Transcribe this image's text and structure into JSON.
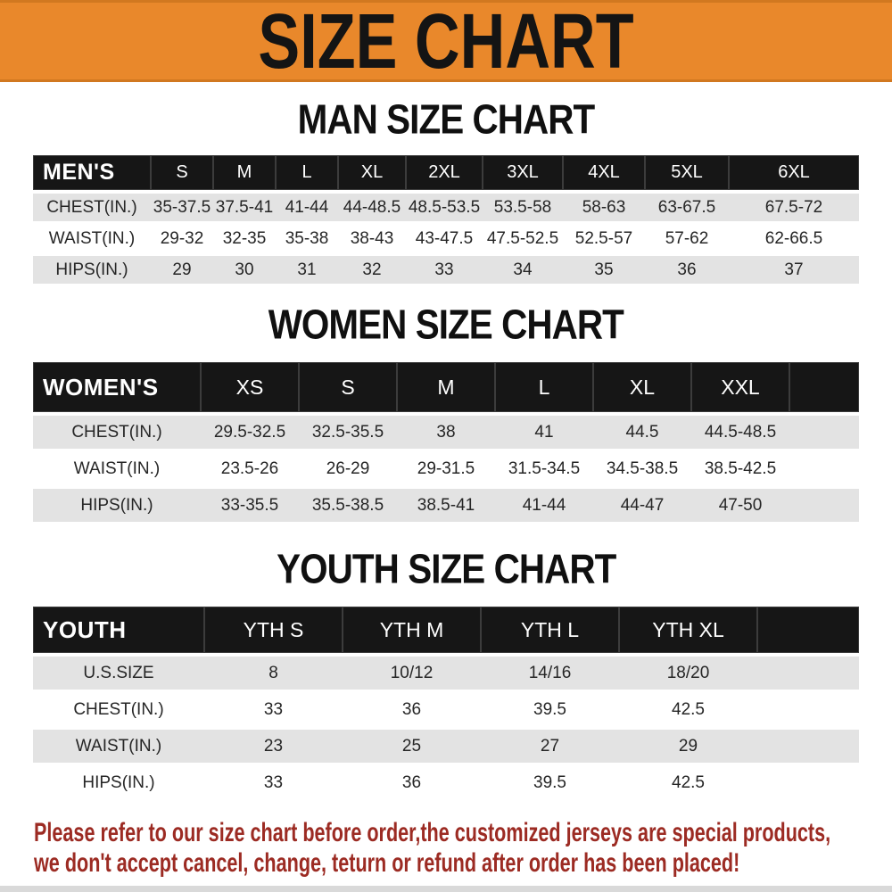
{
  "banner": {
    "title": "SIZE CHART",
    "bg_color": "#e9882b",
    "text_color": "#141414"
  },
  "colors": {
    "table_header_bg": "#161616",
    "table_header_text": "#ffffff",
    "row_stripe": "#e3e3e3",
    "disclaimer_text": "#9c2b23"
  },
  "sections": [
    {
      "id": "men",
      "title": "MAN SIZE CHART",
      "header_label": "MEN'S",
      "columns": [
        "S",
        "M",
        "L",
        "XL",
        "2XL",
        "3XL",
        "4XL",
        "5XL",
        "6XL"
      ],
      "rows": [
        {
          "label": "CHEST(IN.)",
          "values": [
            "35-37.5",
            "37.5-41",
            "41-44",
            "44-48.5",
            "48.5-53.5",
            "53.5-58",
            "58-63",
            "63-67.5",
            "67.5-72"
          ]
        },
        {
          "label": "WAIST(IN.)",
          "values": [
            "29-32",
            "32-35",
            "35-38",
            "38-43",
            "43-47.5",
            "47.5-52.5",
            "52.5-57",
            "57-62",
            "62-66.5"
          ]
        },
        {
          "label": "HIPS(IN.)",
          "values": [
            "29",
            "30",
            "31",
            "32",
            "33",
            "34",
            "35",
            "36",
            "37"
          ]
        }
      ]
    },
    {
      "id": "women",
      "title": "WOMEN SIZE CHART",
      "header_label": "WOMEN'S",
      "columns": [
        "XS",
        "S",
        "M",
        "L",
        "XL",
        "XXL"
      ],
      "rows": [
        {
          "label": "CHEST(IN.)",
          "values": [
            "29.5-32.5",
            "32.5-35.5",
            "38",
            "41",
            "44.5",
            "44.5-48.5"
          ]
        },
        {
          "label": "WAIST(IN.)",
          "values": [
            "23.5-26",
            "26-29",
            "29-31.5",
            "31.5-34.5",
            "34.5-38.5",
            "38.5-42.5"
          ]
        },
        {
          "label": "HIPS(IN.)",
          "values": [
            "33-35.5",
            "35.5-38.5",
            "38.5-41",
            "41-44",
            "44-47",
            "47-50"
          ]
        }
      ]
    },
    {
      "id": "youth",
      "title": "YOUTH SIZE CHART",
      "header_label": "YOUTH",
      "columns": [
        "YTH S",
        "YTH M",
        "YTH L",
        "YTH XL"
      ],
      "rows": [
        {
          "label": "U.S.SIZE",
          "values": [
            "8",
            "10/12",
            "14/16",
            "18/20"
          ]
        },
        {
          "label": "CHEST(IN.)",
          "values": [
            "33",
            "36",
            "39.5",
            "42.5"
          ]
        },
        {
          "label": "WAIST(IN.)",
          "values": [
            "23",
            "25",
            "27",
            "29"
          ]
        },
        {
          "label": "HIPS(IN.)",
          "values": [
            "33",
            "36",
            "39.5",
            "42.5"
          ]
        }
      ]
    }
  ],
  "disclaimer": {
    "line1": "Please refer to our size chart before order,the customized jerseys are special products,",
    "line2": "we don't accept cancel, change, teturn or refund after order has been placed!"
  }
}
